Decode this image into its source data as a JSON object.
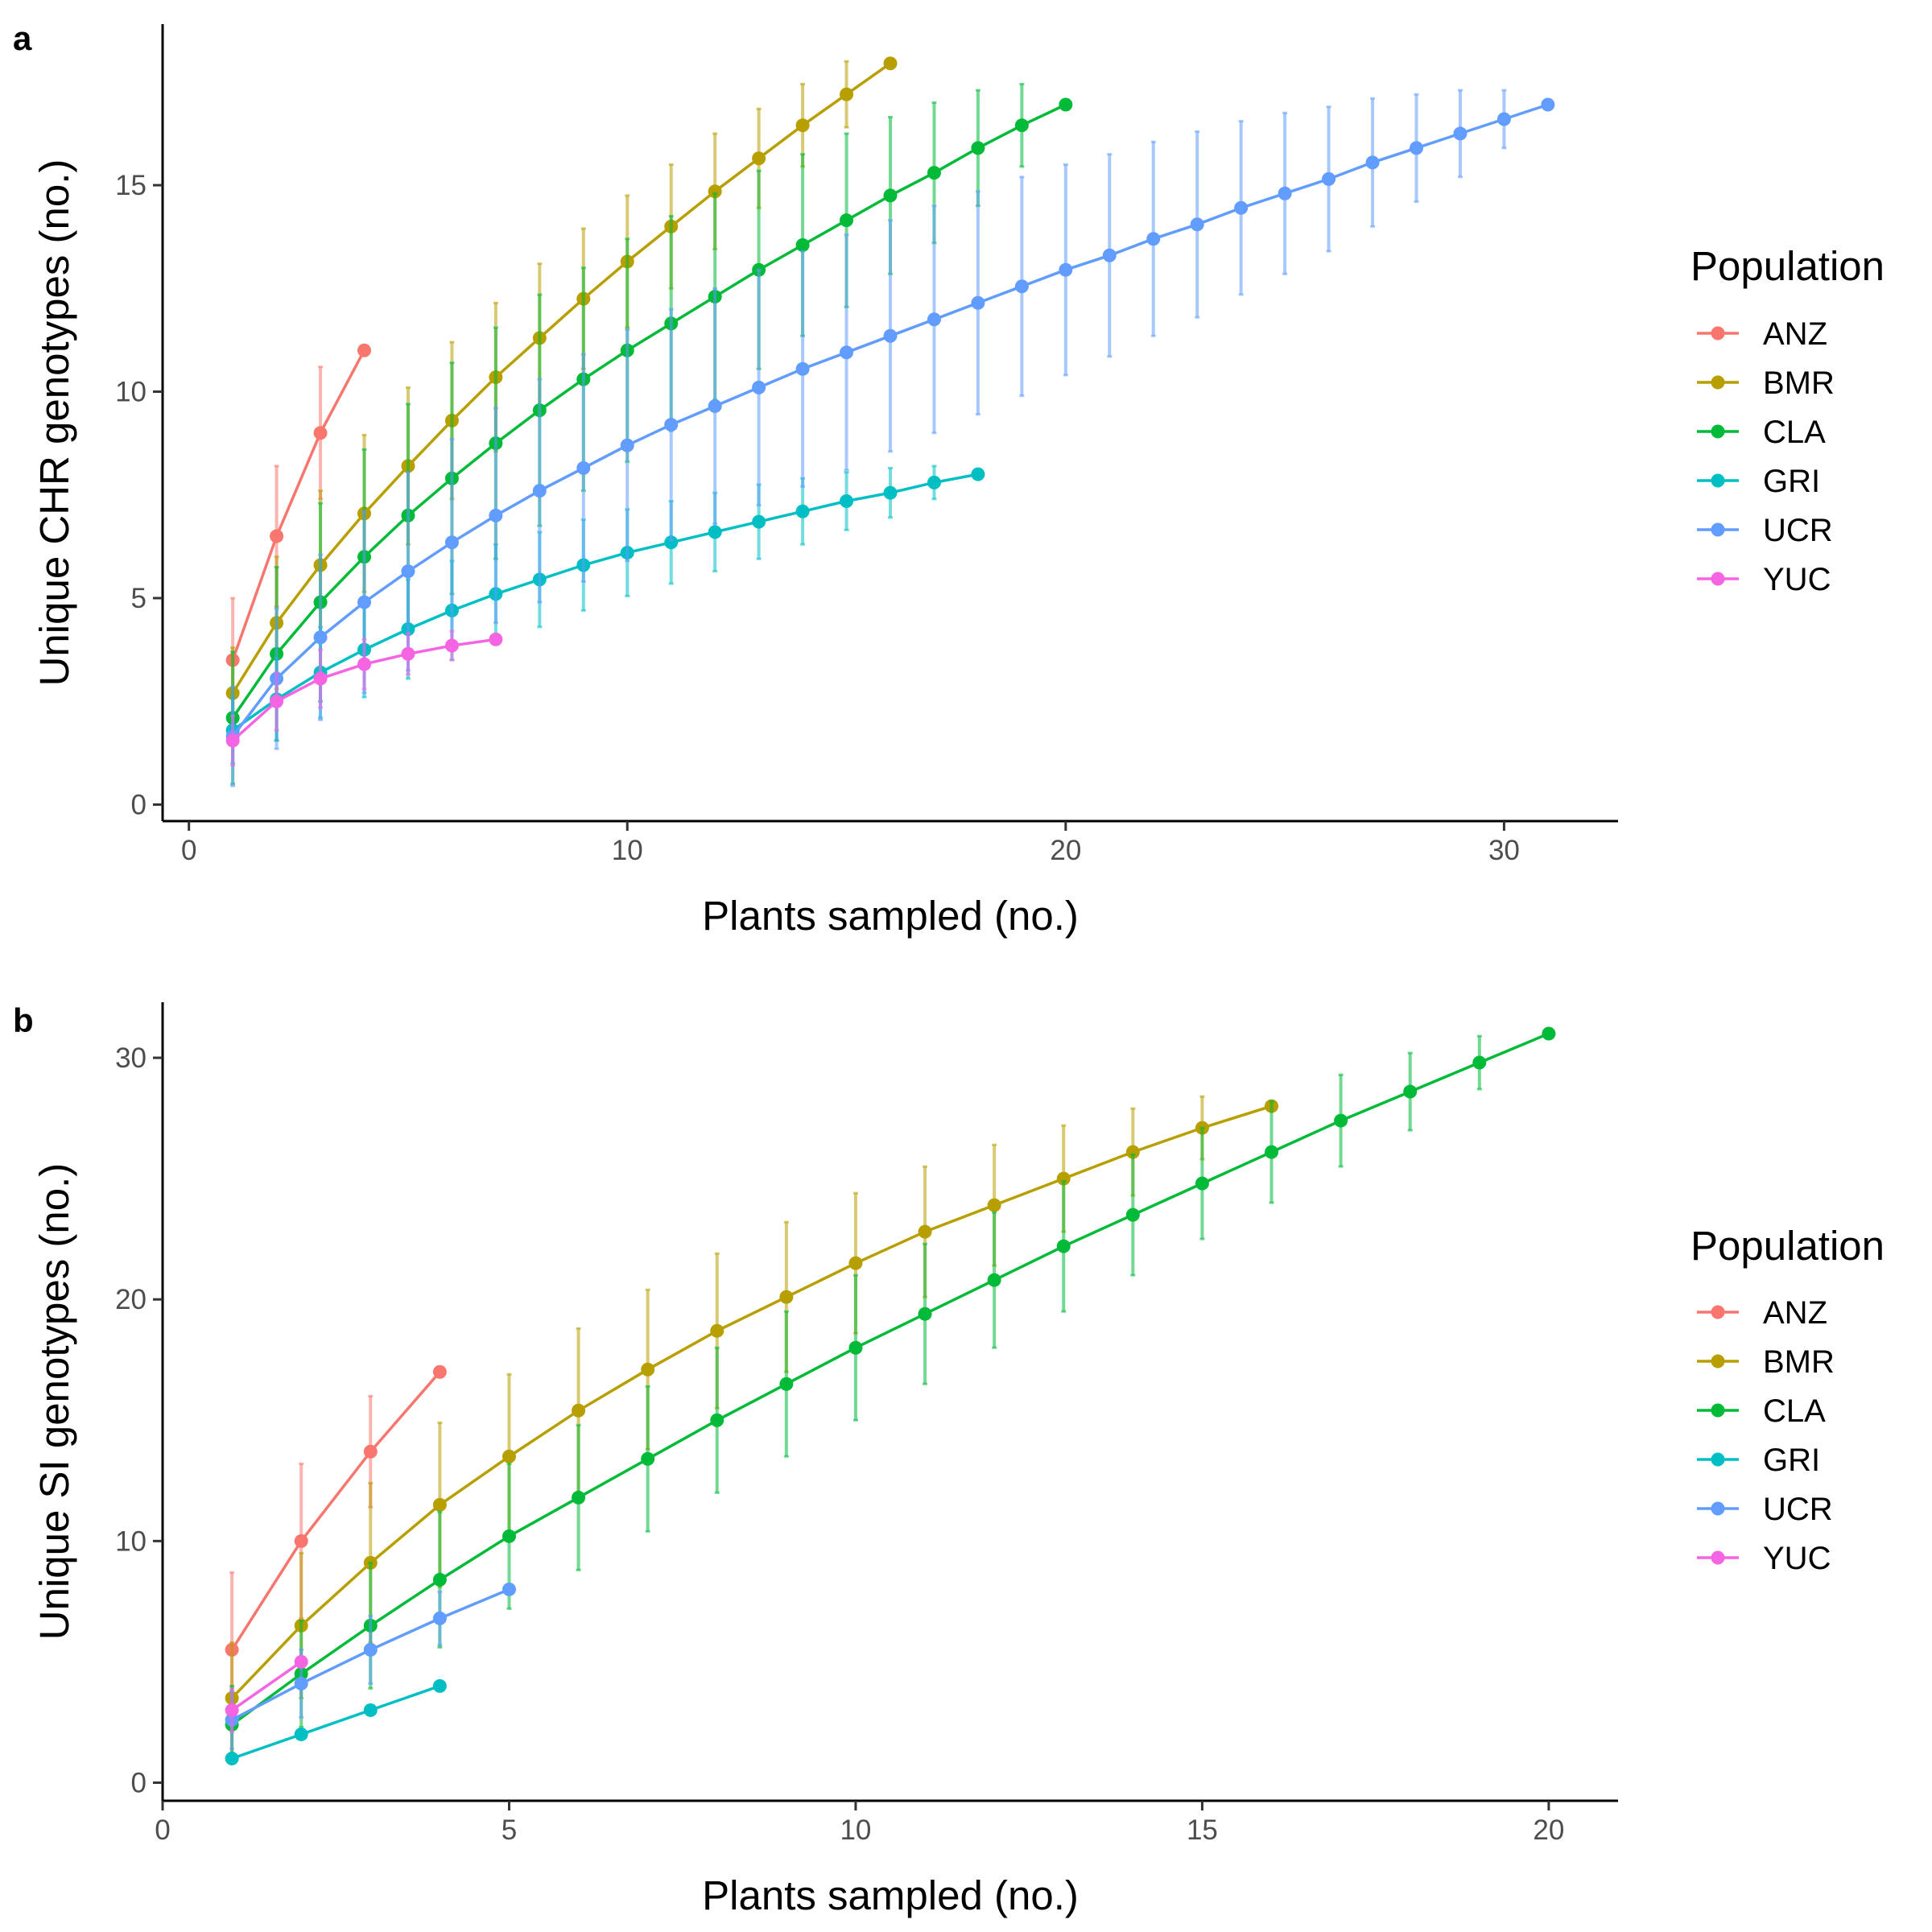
{
  "colors": {
    "ANZ": "#F8766D",
    "BMR": "#B79F00",
    "CLA": "#00BA38",
    "GRI": "#00BFC4",
    "UCR": "#619CFF",
    "YUC": "#F564E3"
  },
  "legend": {
    "title": "Population",
    "entries": [
      "ANZ",
      "BMR",
      "CLA",
      "GRI",
      "UCR",
      "YUC"
    ]
  },
  "chart_data": [
    {
      "panel": "a",
      "type": "line",
      "xlabel": "Plants sampled (no.)",
      "ylabel": "Unique CHR genotypes (no.)",
      "xlim": [
        -0.6,
        32.6
      ],
      "ylim": [
        -0.4,
        18.9
      ],
      "xticks": [
        0,
        10,
        20,
        30
      ],
      "yticks": [
        0,
        5,
        10,
        15
      ],
      "grid": false,
      "legend_position": "right",
      "series": [
        {
          "name": "ANZ",
          "x": [
            1,
            2,
            3,
            4
          ],
          "y": [
            3.5,
            6.5,
            9.0,
            11.0
          ],
          "err": [
            1.5,
            1.7,
            1.6,
            0
          ]
        },
        {
          "name": "BMR",
          "x": [
            1,
            2,
            3,
            4,
            5,
            6,
            7,
            8,
            9,
            10,
            11,
            12,
            13,
            14,
            15,
            16
          ],
          "y": [
            2.7,
            4.4,
            5.8,
            7.05,
            8.2,
            9.3,
            10.35,
            11.3,
            12.25,
            13.15,
            14.0,
            14.85,
            15.65,
            16.45,
            17.2,
            17.95
          ],
          "err": [
            1.1,
            1.6,
            1.8,
            1.9,
            1.9,
            1.9,
            1.8,
            1.8,
            1.7,
            1.6,
            1.5,
            1.4,
            1.2,
            1.0,
            0.8,
            0
          ]
        },
        {
          "name": "CLA",
          "x": [
            1,
            2,
            3,
            4,
            5,
            6,
            7,
            8,
            9,
            10,
            11,
            12,
            13,
            14,
            15,
            16,
            17,
            18,
            19,
            20
          ],
          "y": [
            2.1,
            3.65,
            4.9,
            6.0,
            7.0,
            7.9,
            8.75,
            9.55,
            10.3,
            11.0,
            11.65,
            12.3,
            12.95,
            13.55,
            14.15,
            14.75,
            15.3,
            15.9,
            16.45,
            16.95
          ],
          "err": [
            1.6,
            2.1,
            2.4,
            2.6,
            2.7,
            2.8,
            2.8,
            2.8,
            2.7,
            2.7,
            2.6,
            2.5,
            2.4,
            2.2,
            2.1,
            1.9,
            1.7,
            1.4,
            1.0,
            0
          ]
        },
        {
          "name": "GRI",
          "x": [
            1,
            2,
            3,
            4,
            5,
            6,
            7,
            8,
            9,
            10,
            11,
            12,
            13,
            14,
            15,
            16,
            17,
            18
          ],
          "y": [
            1.8,
            2.55,
            3.2,
            3.75,
            4.25,
            4.7,
            5.1,
            5.45,
            5.8,
            6.1,
            6.35,
            6.6,
            6.85,
            7.1,
            7.35,
            7.55,
            7.8,
            8.0
          ],
          "err": [
            0.8,
            1.0,
            1.1,
            1.15,
            1.2,
            1.2,
            1.2,
            1.15,
            1.1,
            1.05,
            1.0,
            0.95,
            0.9,
            0.8,
            0.7,
            0.6,
            0.4,
            0
          ]
        },
        {
          "name": "UCR",
          "x": [
            1,
            2,
            3,
            4,
            5,
            6,
            7,
            8,
            9,
            10,
            11,
            12,
            13,
            14,
            15,
            16,
            17,
            18,
            19,
            20,
            21,
            22,
            23,
            24,
            25,
            26,
            27,
            28,
            29,
            30,
            31
          ],
          "y": [
            1.65,
            3.05,
            4.05,
            4.9,
            5.65,
            6.35,
            7.0,
            7.6,
            8.15,
            8.7,
            9.2,
            9.65,
            10.1,
            10.55,
            10.95,
            11.35,
            11.75,
            12.15,
            12.55,
            12.95,
            13.3,
            13.7,
            14.05,
            14.45,
            14.8,
            15.15,
            15.55,
            15.9,
            16.25,
            16.6,
            16.95
          ],
          "err": [
            1.2,
            1.7,
            2.0,
            2.2,
            2.4,
            2.5,
            2.6,
            2.7,
            2.75,
            2.8,
            2.8,
            2.85,
            2.85,
            2.85,
            2.85,
            2.8,
            2.75,
            2.7,
            2.65,
            2.55,
            2.45,
            2.35,
            2.25,
            2.1,
            1.95,
            1.75,
            1.55,
            1.3,
            1.05,
            0.7,
            0
          ]
        },
        {
          "name": "YUC",
          "x": [
            1,
            2,
            3,
            4,
            5,
            6,
            7
          ],
          "y": [
            1.55,
            2.5,
            3.05,
            3.4,
            3.65,
            3.85,
            4.0
          ],
          "err": [
            0.6,
            0.7,
            0.7,
            0.6,
            0.5,
            0.35,
            0
          ]
        }
      ]
    },
    {
      "panel": "b",
      "type": "line",
      "xlabel": "Plants sampled (no.)",
      "ylabel": "Unique SI genotypes (no.)",
      "xlim": [
        0,
        21
      ],
      "ylim": [
        -0.75,
        32.3
      ],
      "xticks": [
        0,
        5,
        10,
        15,
        20
      ],
      "yticks": [
        0,
        10,
        20,
        30
      ],
      "grid": false,
      "legend_position": "right",
      "series": [
        {
          "name": "ANZ",
          "x": [
            1,
            2,
            3,
            4
          ],
          "y": [
            5.5,
            10.0,
            13.7,
            17.0
          ],
          "err": [
            3.2,
            3.2,
            2.3,
            0
          ]
        },
        {
          "name": "BMR",
          "x": [
            1,
            2,
            3,
            4,
            5,
            6,
            7,
            8,
            9,
            10,
            11,
            12,
            13,
            14,
            15,
            16
          ],
          "y": [
            3.5,
            6.5,
            9.1,
            11.5,
            13.5,
            15.4,
            17.1,
            18.7,
            20.1,
            21.5,
            22.8,
            23.9,
            25.0,
            26.1,
            27.1,
            28.0
          ],
          "err": [
            2.3,
            3.0,
            3.3,
            3.4,
            3.4,
            3.4,
            3.3,
            3.2,
            3.1,
            2.9,
            2.7,
            2.5,
            2.2,
            1.8,
            1.3,
            0
          ]
        },
        {
          "name": "CLA",
          "x": [
            1,
            2,
            3,
            4,
            5,
            6,
            7,
            8,
            9,
            10,
            11,
            12,
            13,
            14,
            15,
            16,
            17,
            18,
            19,
            20
          ],
          "y": [
            2.4,
            4.5,
            6.5,
            8.4,
            10.2,
            11.8,
            13.4,
            15.0,
            16.5,
            18.0,
            19.4,
            20.8,
            22.2,
            23.5,
            24.8,
            26.1,
            27.4,
            28.6,
            29.8,
            31.0
          ],
          "err": [
            1.6,
            2.2,
            2.6,
            2.8,
            3.0,
            3.0,
            3.0,
            3.0,
            3.0,
            3.0,
            2.9,
            2.8,
            2.7,
            2.5,
            2.3,
            2.1,
            1.9,
            1.6,
            1.1,
            0
          ]
        },
        {
          "name": "GRI",
          "x": [
            1,
            2,
            3,
            4
          ],
          "y": [
            1.0,
            2.0,
            3.0,
            4.0
          ],
          "err": [
            0,
            0,
            0,
            0
          ]
        },
        {
          "name": "UCR",
          "x": [
            1,
            2,
            3,
            4,
            5
          ],
          "y": [
            2.6,
            4.1,
            5.5,
            6.8,
            8.0
          ],
          "err": [
            1.2,
            1.4,
            1.4,
            1.1,
            0
          ]
        },
        {
          "name": "YUC",
          "x": [
            1,
            2
          ],
          "y": [
            3.0,
            5.0
          ],
          "err": [
            0.9,
            0
          ]
        }
      ]
    }
  ]
}
